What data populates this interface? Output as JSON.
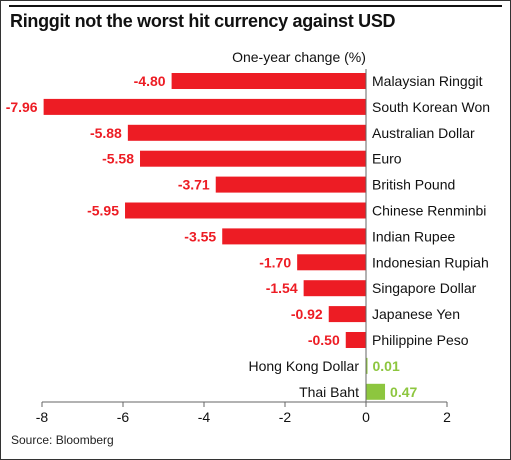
{
  "title": "Ringgit not the worst hit currency against USD",
  "source": "Source: Bloomberg",
  "colors": {
    "negative": "#ed1c24",
    "positive": "#8dc63f",
    "text": "#111111",
    "axis": "#666666"
  },
  "chart_data": {
    "type": "bar",
    "orientation": "horizontal",
    "title": "Ringgit not the worst hit currency against USD",
    "xlabel": "One-year change (%)",
    "ylabel": "",
    "xlim": [
      -8,
      2
    ],
    "xticks": [
      -8,
      -6,
      -4,
      -2,
      0,
      2
    ],
    "grid": false,
    "categories": [
      "Malaysian Ringgit",
      "South Korean Won",
      "Australian Dollar",
      "Euro",
      "British Pound",
      "Chinese Renminbi",
      "Indian Rupee",
      "Indonesian Rupiah",
      "Singapore Dollar",
      "Japanese Yen",
      "Philippine Peso",
      "Hong Kong Dollar",
      "Thai Baht"
    ],
    "values": [
      -4.8,
      -7.96,
      -5.88,
      -5.58,
      -3.71,
      -5.95,
      -3.55,
      -1.7,
      -1.54,
      -0.92,
      -0.5,
      0.01,
      0.47
    ],
    "value_labels": [
      "-4.80",
      "-7.96",
      "-5.88",
      "-5.58",
      "-3.71",
      "-5.95",
      "-3.55",
      "-1.70",
      "-1.54",
      "-0.92",
      "-0.50",
      "0.01",
      "0.47"
    ]
  }
}
